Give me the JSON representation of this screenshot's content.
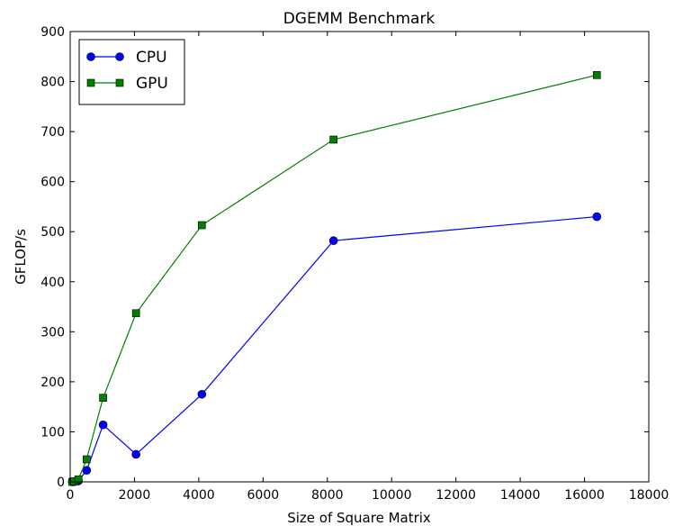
{
  "chart_data": {
    "type": "line",
    "title": "DGEMM Benchmark",
    "xlabel": "Size of Square Matrix",
    "ylabel": "GFLOP/s",
    "xlim": [
      0,
      18000
    ],
    "ylim": [
      0,
      900
    ],
    "xticks": [
      0,
      2000,
      4000,
      6000,
      8000,
      10000,
      12000,
      14000,
      16000,
      18000
    ],
    "yticks": [
      0,
      100,
      200,
      300,
      400,
      500,
      600,
      700,
      800,
      900
    ],
    "x_tick_labels": [
      "0",
      "2000",
      "4000",
      "6000",
      "8000",
      "10000",
      "12000",
      "14000",
      "16000",
      "18000"
    ],
    "y_tick_labels": [
      "0",
      "100",
      "200",
      "300",
      "400",
      "500",
      "600",
      "700",
      "800",
      "900"
    ],
    "grid": false,
    "legend_position": "top-left",
    "series": [
      {
        "name": "CPU",
        "color": "#0000ff",
        "marker": "circle",
        "x": [
          64,
          128,
          256,
          512,
          1024,
          2048,
          4096,
          8192,
          16384
        ],
        "y": [
          0,
          0.5,
          2,
          23,
          114,
          55,
          175,
          482,
          530
        ]
      },
      {
        "name": "GPU",
        "color": "#007f00",
        "marker": "square",
        "x": [
          64,
          128,
          256,
          512,
          1024,
          2048,
          4096,
          8192,
          16384
        ],
        "y": [
          0,
          1,
          5,
          45,
          168,
          337,
          513,
          684,
          813
        ]
      }
    ]
  }
}
